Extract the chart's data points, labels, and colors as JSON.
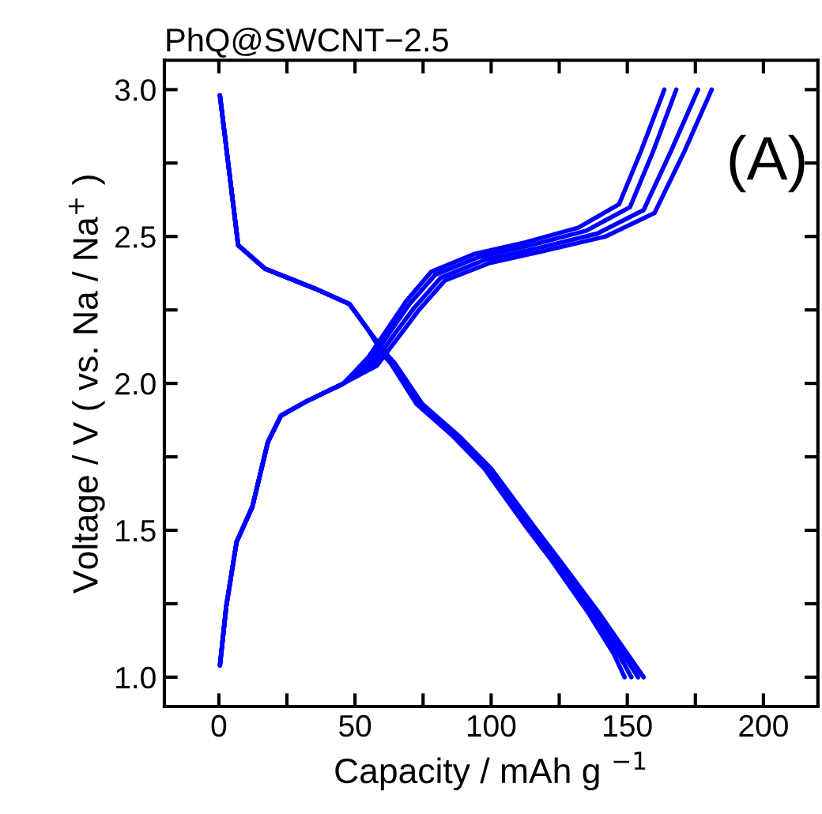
{
  "chart_data": {
    "type": "line",
    "title": "PhQ@SWCNT−2.5",
    "xlabel": "Capacity / mAh g $^{−1}$",
    "ylabel": "Voltage / V ( vs. Na / Na$^{+}$ )",
    "annotations": [
      "(A)"
    ],
    "xlim": [
      -20,
      220
    ],
    "ylim": [
      0.9,
      3.1
    ],
    "xticks": [
      0,
      {
        "value": 25,
        "label": null
      },
      50,
      {
        "value": 75,
        "label": null
      },
      100,
      {
        "value": 125,
        "label": null
      },
      150,
      {
        "value": 175,
        "label": null
      },
      200
    ],
    "yticks": [
      {
        "value": 1.0,
        "label": "1.0"
      },
      {
        "value": 1.25,
        "label": null
      },
      {
        "value": 1.5,
        "label": "1.5"
      },
      {
        "value": 1.75,
        "label": null
      },
      {
        "value": 2.0,
        "label": "2.0"
      },
      {
        "value": 2.25,
        "label": null
      },
      {
        "value": 2.5,
        "label": "2.5"
      },
      {
        "value": 2.75,
        "label": null
      },
      {
        "value": 3.0,
        "label": "3.0"
      }
    ],
    "grid": false,
    "legend": false,
    "marker": "none",
    "line_style": "solid",
    "series": [
      {
        "color": "#0000ff",
        "x": [
          0.4,
          7.1,
          17,
          36,
          48,
          55,
          61,
          63,
          72.6,
          86,
          97.5,
          113,
          122,
          135.6,
          145,
          149
        ],
        "values": [
          2.98,
          2.47,
          2.39,
          2.32,
          2.27,
          2.18,
          2.09,
          2.07,
          1.93,
          1.82,
          1.71,
          1.51,
          1.4,
          1.22,
          1.08,
          1.0
        ]
      },
      {
        "color": "#0000ff",
        "x": [
          0.4,
          7.1,
          17,
          36,
          48,
          55,
          61.5,
          63.5,
          73.3,
          86.7,
          98.3,
          114,
          123,
          137,
          146.7,
          151.5
        ],
        "values": [
          2.98,
          2.47,
          2.39,
          2.32,
          2.27,
          2.18,
          2.09,
          2.07,
          1.93,
          1.82,
          1.71,
          1.51,
          1.4,
          1.22,
          1.08,
          1.0
        ]
      },
      {
        "color": "#0000ff",
        "x": [
          0.4,
          7.1,
          17,
          36,
          48,
          55,
          62,
          64,
          74,
          87.5,
          99,
          115,
          124,
          138,
          148.3,
          154
        ],
        "values": [
          2.98,
          2.47,
          2.39,
          2.32,
          2.27,
          2.18,
          2.09,
          2.07,
          1.93,
          1.82,
          1.71,
          1.51,
          1.4,
          1.22,
          1.08,
          1.0
        ]
      },
      {
        "color": "#0000ff",
        "x": [
          0.4,
          7.1,
          17,
          36,
          48,
          55,
          62.5,
          64.5,
          74.7,
          88.3,
          100,
          116,
          125,
          139.5,
          150,
          156
        ],
        "values": [
          2.98,
          2.47,
          2.39,
          2.32,
          2.27,
          2.18,
          2.09,
          2.07,
          1.93,
          1.82,
          1.71,
          1.51,
          1.4,
          1.22,
          1.08,
          1.0
        ]
      },
      {
        "color": "#0000ff",
        "x": [
          0.4,
          2.7,
          6.5,
          12.3,
          18,
          22.8,
          32.4,
          45.8,
          55,
          63,
          68.8,
          78,
          93.7,
          112.6,
          132,
          147,
          155,
          163.6
        ],
        "values": [
          1.04,
          1.24,
          1.46,
          1.58,
          1.8,
          1.89,
          1.94,
          2.0,
          2.09,
          2.2,
          2.28,
          2.38,
          2.44,
          2.48,
          2.53,
          2.61,
          2.79,
          3.0
        ]
      },
      {
        "color": "#0000ff",
        "x": [
          0.4,
          2.7,
          6.5,
          12.3,
          18,
          22.8,
          32.4,
          45.8,
          56,
          64,
          70,
          79.5,
          95.5,
          114.5,
          135,
          151,
          159.5,
          168
        ],
        "values": [
          1.04,
          1.24,
          1.46,
          1.58,
          1.8,
          1.89,
          1.94,
          2.0,
          2.08,
          2.19,
          2.27,
          2.37,
          2.43,
          2.47,
          2.52,
          2.6,
          2.79,
          3.0
        ]
      },
      {
        "color": "#0000ff",
        "x": [
          0.4,
          2.7,
          6.5,
          12.3,
          18,
          22.8,
          32.4,
          45.8,
          57,
          65.5,
          72,
          81.5,
          97.5,
          117,
          139,
          156,
          166,
          176
        ],
        "values": [
          1.04,
          1.24,
          1.46,
          1.58,
          1.8,
          1.89,
          1.94,
          2.0,
          2.07,
          2.18,
          2.26,
          2.36,
          2.42,
          2.46,
          2.51,
          2.59,
          2.79,
          3.0
        ]
      },
      {
        "color": "#0000ff",
        "x": [
          0.4,
          2.7,
          6.5,
          12.3,
          18,
          22.8,
          32.4,
          45.8,
          58,
          67,
          73.5,
          83,
          99.5,
          119,
          142,
          160,
          171,
          181
        ],
        "values": [
          1.04,
          1.24,
          1.46,
          1.58,
          1.8,
          1.89,
          1.94,
          2.0,
          2.06,
          2.17,
          2.25,
          2.35,
          2.41,
          2.45,
          2.5,
          2.58,
          2.79,
          3.0
        ]
      }
    ]
  }
}
